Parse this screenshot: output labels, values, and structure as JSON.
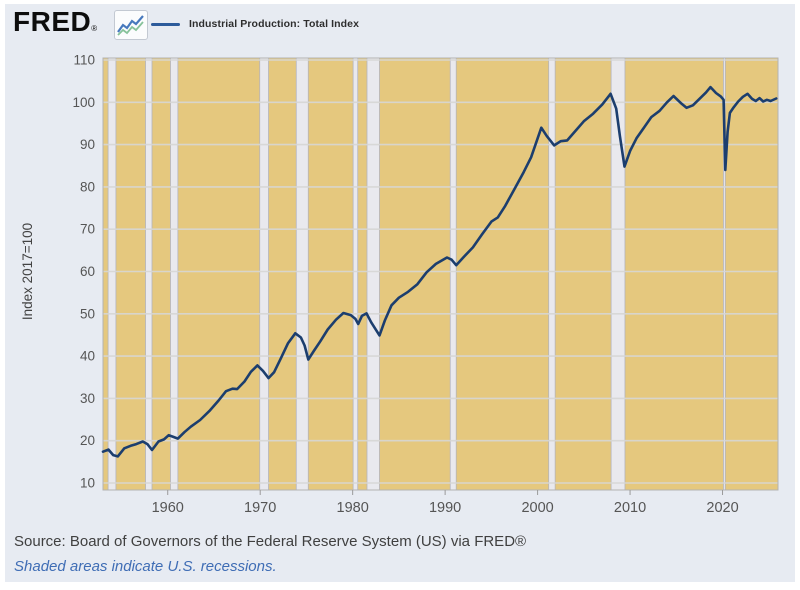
{
  "header": {
    "logo_text": "FRED",
    "logo_registered": "®",
    "legend": {
      "label": "Industrial Production: Total Index",
      "color": "#2d5b9b"
    }
  },
  "footer": {
    "source": "Source: Board of Governors of the Federal Reserve System (US) via FRED®",
    "note": "Shaded areas indicate U.S. recessions."
  },
  "chart_data": {
    "type": "line",
    "title": "Industrial Production: Total Index",
    "ylabel": "Index 2017=100",
    "xlabel": "",
    "xlim": [
      1953,
      2026
    ],
    "ylim": [
      10,
      110
    ],
    "x_ticks": [
      1960,
      1970,
      1980,
      1990,
      2000,
      2010,
      2020
    ],
    "y_ticks": [
      10,
      20,
      30,
      40,
      50,
      60,
      70,
      80,
      90,
      100,
      110
    ],
    "grid": "horizontal",
    "legend_position": "top-left",
    "colors": {
      "plot_bg": "#e5c87e",
      "line": "#1c3e6e",
      "grid": "#d6d6d4",
      "recession_band": "#e9e9ee",
      "recession_border": "#b4b4bc",
      "plot_border": "#b3b3b3",
      "tick_text": "#555555",
      "axis_title_text": "#444444",
      "page_bg": "#e7ebf2"
    },
    "recessions": [
      [
        1953.55,
        1954.4
      ],
      [
        1957.6,
        1958.3
      ],
      [
        1960.3,
        1961.1
      ],
      [
        1969.95,
        1970.9
      ],
      [
        1973.9,
        1975.2
      ],
      [
        1980.05,
        1980.55
      ],
      [
        1981.55,
        1982.9
      ],
      [
        1990.55,
        1991.2
      ],
      [
        2001.2,
        2001.9
      ],
      [
        2007.95,
        2009.45
      ],
      [
        2020.1,
        2020.3
      ]
    ],
    "series": [
      {
        "name": "Industrial Production: Total Index",
        "points": [
          [
            1953.0,
            17.4
          ],
          [
            1953.6,
            17.9
          ],
          [
            1954.1,
            16.6
          ],
          [
            1954.6,
            16.3
          ],
          [
            1955.3,
            18.2
          ],
          [
            1956.0,
            18.8
          ],
          [
            1956.6,
            19.2
          ],
          [
            1957.3,
            19.8
          ],
          [
            1957.8,
            19.2
          ],
          [
            1958.3,
            17.8
          ],
          [
            1959.0,
            19.8
          ],
          [
            1959.6,
            20.3
          ],
          [
            1960.1,
            21.3
          ],
          [
            1960.6,
            20.9
          ],
          [
            1961.1,
            20.5
          ],
          [
            1961.8,
            22.0
          ],
          [
            1962.5,
            23.3
          ],
          [
            1963.5,
            24.9
          ],
          [
            1964.5,
            27.0
          ],
          [
            1965.5,
            29.5
          ],
          [
            1966.3,
            31.7
          ],
          [
            1967.0,
            32.3
          ],
          [
            1967.5,
            32.2
          ],
          [
            1968.3,
            34.0
          ],
          [
            1969.0,
            36.3
          ],
          [
            1969.7,
            37.8
          ],
          [
            1970.3,
            36.5
          ],
          [
            1970.9,
            34.8
          ],
          [
            1971.5,
            36.2
          ],
          [
            1972.2,
            39.3
          ],
          [
            1973.0,
            43.0
          ],
          [
            1973.8,
            45.4
          ],
          [
            1974.4,
            44.4
          ],
          [
            1974.8,
            42.5
          ],
          [
            1975.2,
            39.2
          ],
          [
            1975.8,
            41.2
          ],
          [
            1976.5,
            43.5
          ],
          [
            1977.3,
            46.3
          ],
          [
            1978.2,
            48.6
          ],
          [
            1979.0,
            50.2
          ],
          [
            1979.8,
            49.7
          ],
          [
            1980.3,
            48.8
          ],
          [
            1980.6,
            47.6
          ],
          [
            1981.0,
            49.5
          ],
          [
            1981.5,
            50.1
          ],
          [
            1982.0,
            48.0
          ],
          [
            1982.9,
            44.9
          ],
          [
            1983.5,
            48.5
          ],
          [
            1984.2,
            52.0
          ],
          [
            1985.0,
            53.8
          ],
          [
            1986.0,
            55.2
          ],
          [
            1987.0,
            57.0
          ],
          [
            1988.0,
            59.8
          ],
          [
            1989.0,
            61.8
          ],
          [
            1990.2,
            63.3
          ],
          [
            1990.7,
            62.8
          ],
          [
            1991.2,
            61.5
          ],
          [
            1992.0,
            63.4
          ],
          [
            1993.0,
            65.7
          ],
          [
            1994.0,
            68.8
          ],
          [
            1995.0,
            71.8
          ],
          [
            1995.7,
            72.8
          ],
          [
            1996.5,
            75.5
          ],
          [
            1997.5,
            79.5
          ],
          [
            1998.5,
            83.5
          ],
          [
            1999.3,
            87.0
          ],
          [
            2000.4,
            94.0
          ],
          [
            2001.0,
            92.0
          ],
          [
            2001.8,
            89.8
          ],
          [
            2002.5,
            90.8
          ],
          [
            2003.2,
            91.0
          ],
          [
            2004.0,
            93.0
          ],
          [
            2005.0,
            95.5
          ],
          [
            2006.0,
            97.3
          ],
          [
            2007.0,
            99.5
          ],
          [
            2007.9,
            102.0
          ],
          [
            2008.5,
            98.5
          ],
          [
            2008.9,
            92.0
          ],
          [
            2009.4,
            84.8
          ],
          [
            2010.0,
            88.5
          ],
          [
            2010.7,
            91.5
          ],
          [
            2011.5,
            94.0
          ],
          [
            2012.3,
            96.5
          ],
          [
            2013.2,
            98.0
          ],
          [
            2014.0,
            100.0
          ],
          [
            2014.7,
            101.5
          ],
          [
            2015.5,
            99.8
          ],
          [
            2016.1,
            98.7
          ],
          [
            2016.8,
            99.3
          ],
          [
            2017.5,
            100.8
          ],
          [
            2018.2,
            102.3
          ],
          [
            2018.7,
            103.6
          ],
          [
            2019.3,
            102.2
          ],
          [
            2019.8,
            101.4
          ],
          [
            2020.12,
            100.6
          ],
          [
            2020.3,
            84.0
          ],
          [
            2020.55,
            93.0
          ],
          [
            2020.8,
            97.5
          ],
          [
            2021.2,
            98.8
          ],
          [
            2021.7,
            100.2
          ],
          [
            2022.2,
            101.3
          ],
          [
            2022.7,
            102.0
          ],
          [
            2023.2,
            100.8
          ],
          [
            2023.6,
            100.3
          ],
          [
            2024.0,
            101.0
          ],
          [
            2024.4,
            100.2
          ],
          [
            2024.8,
            100.6
          ],
          [
            2025.2,
            100.3
          ],
          [
            2025.8,
            100.9
          ]
        ]
      }
    ]
  }
}
